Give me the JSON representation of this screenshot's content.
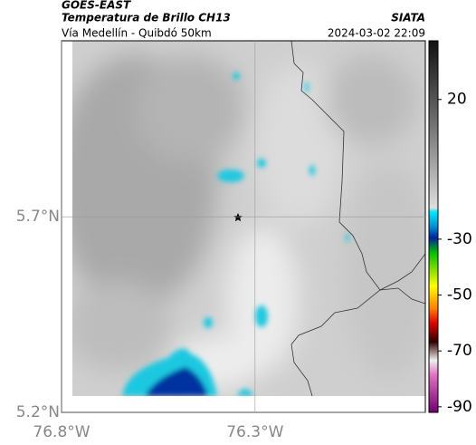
{
  "header": {
    "source": "GOES-EAST",
    "title": "Temperatura de Brillo CH13",
    "org": "SIATA",
    "route": "Vía Medellín - Quibdó 50km",
    "datetime": "2024-03-02 22:09"
  },
  "map": {
    "xlim": [
      -76.8,
      -75.86
    ],
    "ylim": [
      5.2,
      6.15
    ],
    "xticks": [
      {
        "value": -76.8,
        "label": "76.8°W"
      },
      {
        "value": -76.3,
        "label": "76.3°W"
      }
    ],
    "yticks": [
      {
        "value": 5.2,
        "label": "5.2°N"
      },
      {
        "value": 5.7,
        "label": "5.7°N"
      }
    ],
    "grid": true
  },
  "colorbar": {
    "lim": [
      -92,
      41
    ],
    "ticks": [
      20,
      -30,
      -50,
      -70,
      -90
    ]
  }
}
